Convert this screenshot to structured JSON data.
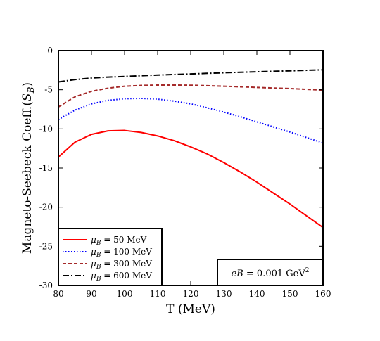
{
  "chart_data": {
    "type": "line",
    "xlabel": "T (MeV)",
    "ylabel": "Magneto-Seebeck Coeff.(S_B)",
    "xlim": [
      80,
      160
    ],
    "ylim": [
      -30,
      0
    ],
    "xticks": [
      80,
      90,
      100,
      110,
      120,
      130,
      140,
      150,
      160
    ],
    "yticks": [
      0,
      -5,
      -10,
      -15,
      -20,
      -25,
      -30
    ],
    "grid": false,
    "legend_position": "bottom-left",
    "annotation": "eB = 0.001 GeV²",
    "series": [
      {
        "name": "μ_B = 50 MeV",
        "color": "#ff0000",
        "dash": "solid",
        "x": [
          80,
          85,
          90,
          95,
          100,
          105,
          110,
          115,
          120,
          125,
          130,
          135,
          140,
          145,
          150,
          155,
          160
        ],
        "y": [
          -13.6,
          -11.7,
          -10.7,
          -10.25,
          -10.2,
          -10.45,
          -10.9,
          -11.5,
          -12.3,
          -13.2,
          -14.3,
          -15.5,
          -16.8,
          -18.2,
          -19.6,
          -21.1,
          -22.6
        ]
      },
      {
        "name": "μ_B = 100 MeV",
        "color": "#0000ff",
        "dash": "dotted",
        "x": [
          80,
          85,
          90,
          95,
          100,
          105,
          110,
          115,
          120,
          125,
          130,
          135,
          140,
          145,
          150,
          155,
          160
        ],
        "y": [
          -8.8,
          -7.6,
          -6.8,
          -6.35,
          -6.15,
          -6.1,
          -6.2,
          -6.45,
          -6.8,
          -7.3,
          -7.85,
          -8.45,
          -9.1,
          -9.75,
          -10.4,
          -11.1,
          -11.8
        ]
      },
      {
        "name": "μ_B = 300 MeV",
        "color": "#a52a2a",
        "dash": "dashed",
        "x": [
          80,
          85,
          90,
          95,
          100,
          105,
          110,
          115,
          120,
          125,
          130,
          135,
          140,
          145,
          150,
          155,
          160
        ],
        "y": [
          -7.2,
          -5.9,
          -5.2,
          -4.8,
          -4.55,
          -4.45,
          -4.4,
          -4.4,
          -4.42,
          -4.48,
          -4.55,
          -4.62,
          -4.7,
          -4.78,
          -4.85,
          -4.95,
          -5.05
        ]
      },
      {
        "name": "μ_B = 600 MeV",
        "color": "#000000",
        "dash": "dashdot",
        "x": [
          80,
          85,
          90,
          95,
          100,
          105,
          110,
          115,
          120,
          125,
          130,
          135,
          140,
          145,
          150,
          155,
          160
        ],
        "y": [
          -4.0,
          -3.7,
          -3.5,
          -3.38,
          -3.3,
          -3.2,
          -3.12,
          -3.05,
          -2.98,
          -2.9,
          -2.83,
          -2.76,
          -2.7,
          -2.64,
          -2.58,
          -2.52,
          -2.45
        ]
      }
    ]
  }
}
